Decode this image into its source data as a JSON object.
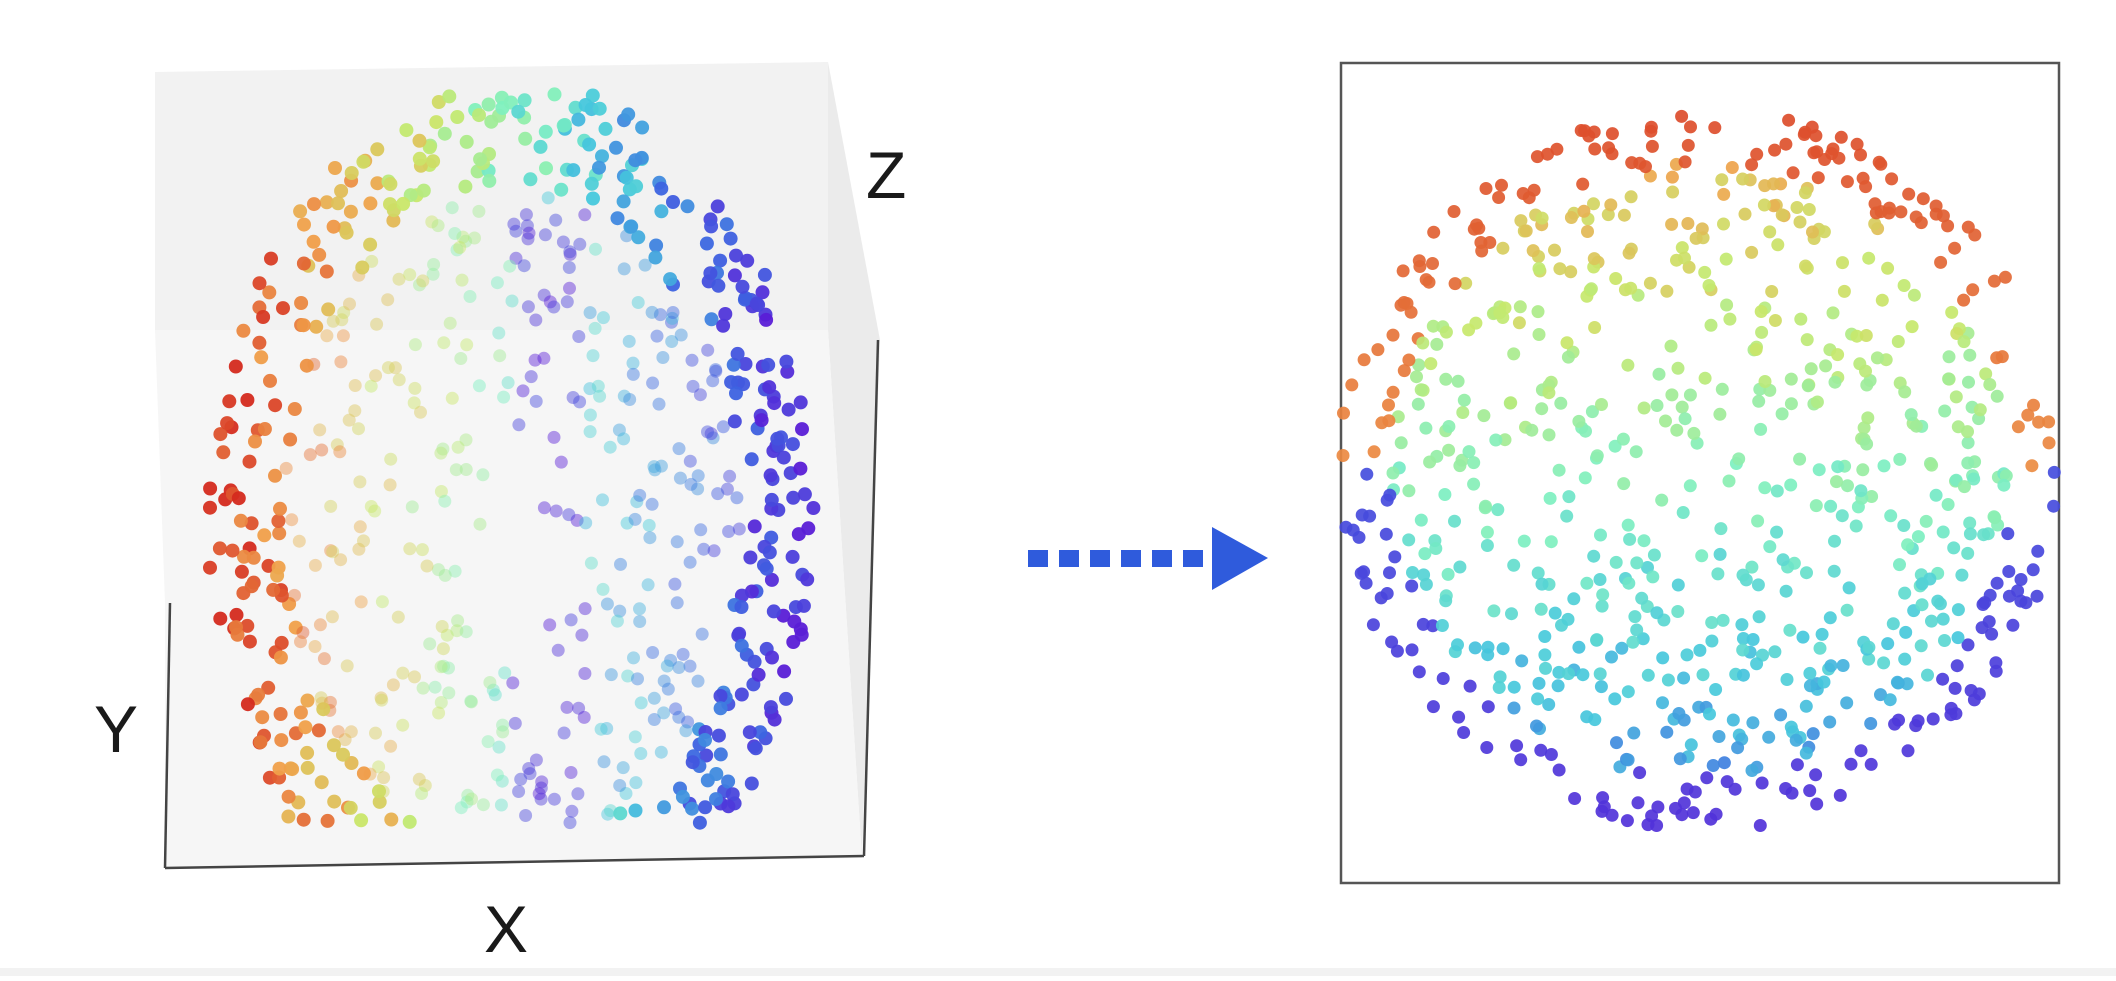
{
  "figure": {
    "left_panel": {
      "kind": "3d-scatter",
      "axes": {
        "x": "X",
        "y": "Y",
        "z": "Z"
      }
    },
    "arrow": {
      "style": "dashed",
      "direction": "right",
      "color": "#2f5bdc"
    },
    "right_panel": {
      "kind": "2d-scatter"
    },
    "colormap": "rainbow",
    "colors": {
      "red": "#d42a1e",
      "orange": "#f0a04a",
      "yellow_green": "#c8e86a",
      "mint": "#7ef0c0",
      "cyan": "#46c8dc",
      "blue": "#3c64e0",
      "violet": "#5a1ed6",
      "arrow": "#2f5bdc"
    }
  }
}
